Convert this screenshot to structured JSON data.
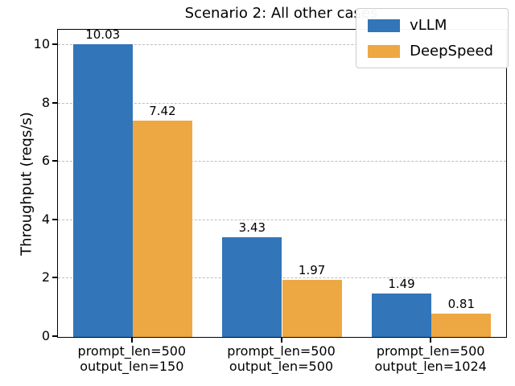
{
  "chart_data": {
    "type": "bar",
    "title": "Scenario 2: All other cases",
    "xlabel": "",
    "ylabel": "Throughput (reqs/s)",
    "categories": [
      "prompt_len=500\noutput_len=150",
      "prompt_len=500\noutput_len=500",
      "prompt_len=500\noutput_len=1024"
    ],
    "series": [
      {
        "name": "vLLM",
        "color": "#3375B9",
        "values": [
          10.03,
          3.43,
          1.49
        ]
      },
      {
        "name": "DeepSpeed",
        "color": "#EDA843",
        "values": [
          7.42,
          1.97,
          0.81
        ]
      }
    ],
    "value_label_decimals": 2,
    "yticks": [
      0,
      2,
      4,
      6,
      8,
      10
    ],
    "ylim": [
      0,
      10.53
    ],
    "grid": "horizontal-dashed",
    "grid_color": "#bdbdbd",
    "legend_position": "upper-right",
    "background_color": "#ffffff",
    "text_color": "#000000"
  }
}
